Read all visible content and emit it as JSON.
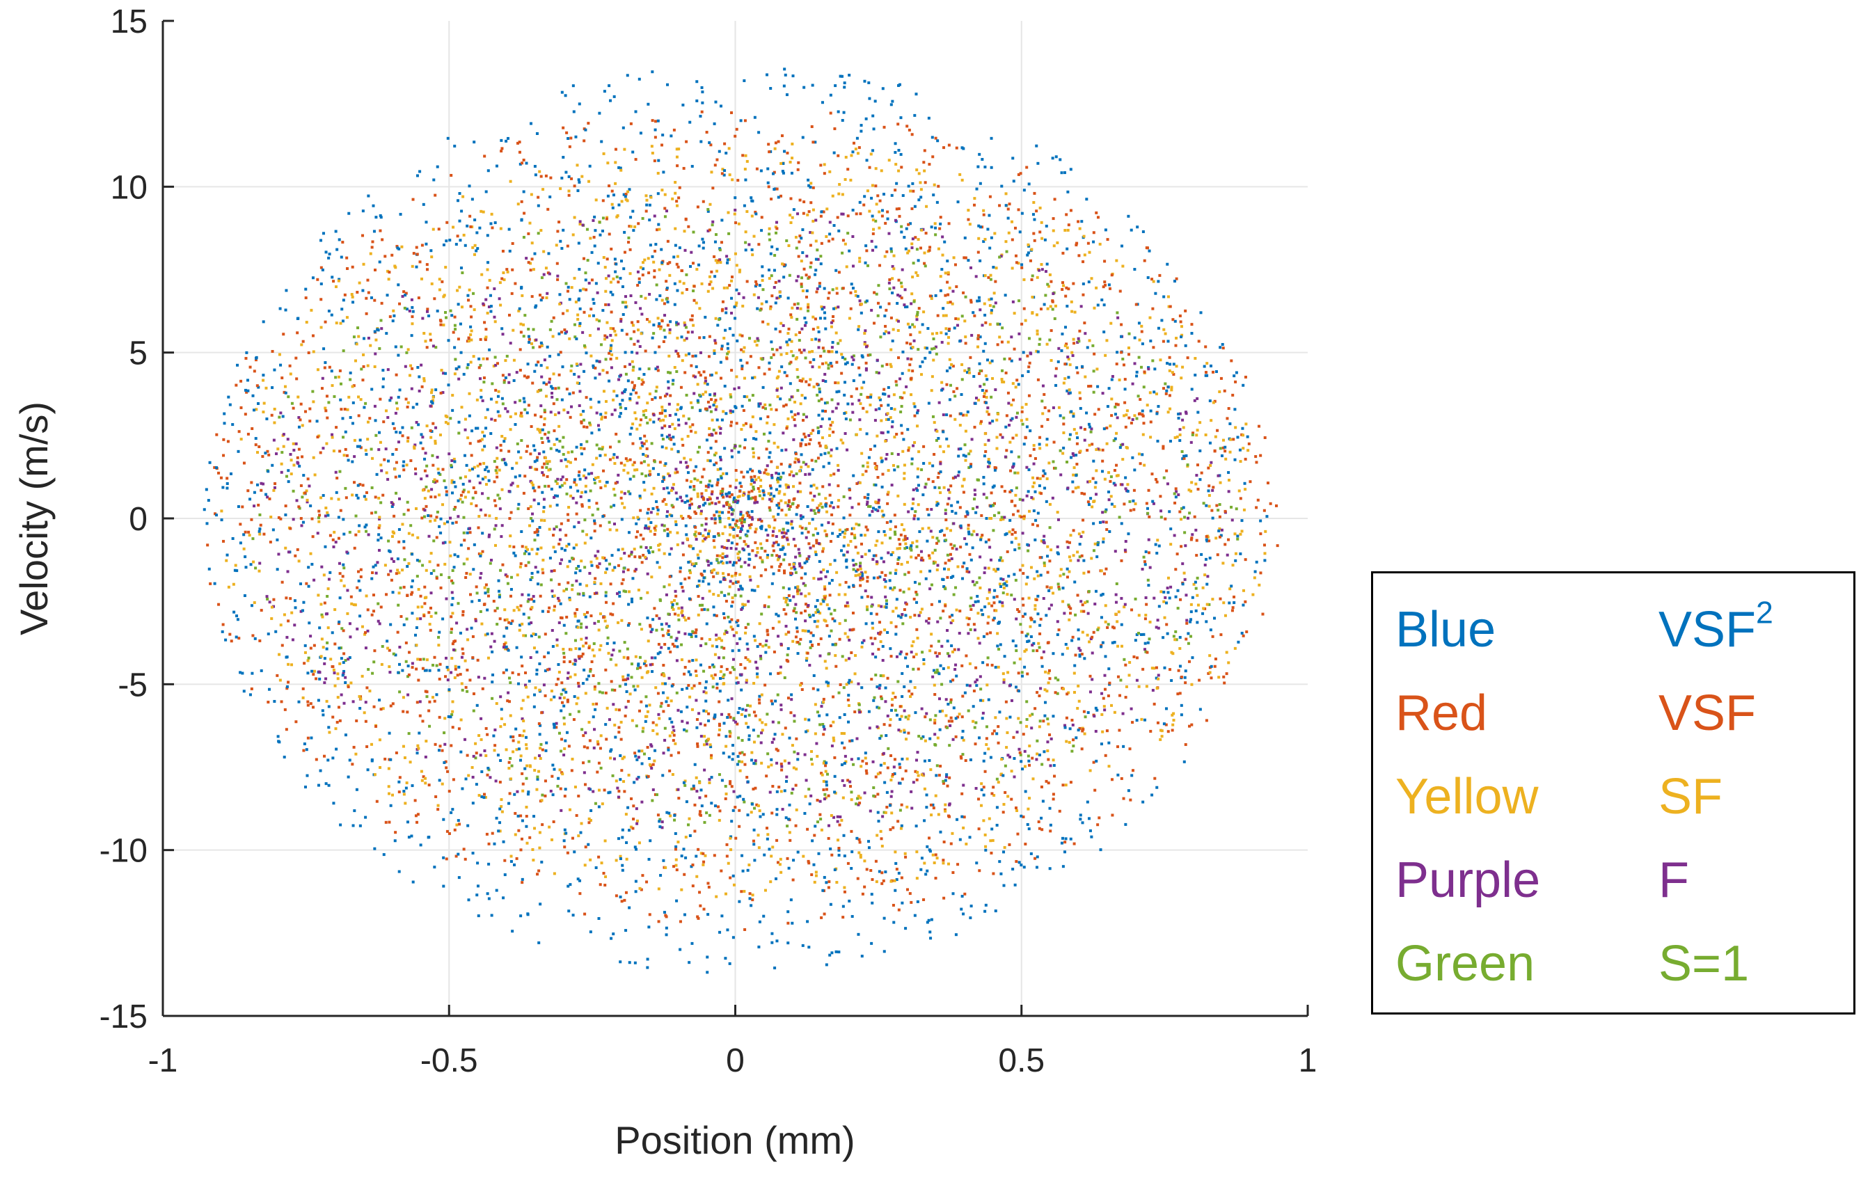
{
  "chart_data": {
    "type": "scatter",
    "xlabel": "Position (mm)",
    "ylabel": "Velocity (m/s)",
    "xlim": [
      -1,
      1
    ],
    "ylim": [
      -15,
      15
    ],
    "x_ticks": [
      "-1",
      "-0.5",
      "0",
      "0.5",
      "1"
    ],
    "y_ticks": [
      "15",
      "10",
      "5",
      "0",
      "-5",
      "-10",
      "-15"
    ],
    "x_tick_values": [
      -1,
      -0.5,
      0,
      0.5,
      1
    ],
    "y_tick_values": [
      15,
      10,
      5,
      0,
      -5,
      -10,
      -15
    ],
    "grid": true,
    "legend_position": "right",
    "series": [
      {
        "color_name": "Blue",
        "label": "VSF",
        "label_sup": "2",
        "color": "#0072BD",
        "x_range": [
          -0.93,
          0.93
        ],
        "y_range": [
          -13.8,
          13.8
        ]
      },
      {
        "color_name": "Red",
        "label": "VSF",
        "label_sup": "",
        "color": "#D95319",
        "x_range": [
          -0.93,
          0.95
        ],
        "y_range": [
          -12.5,
          12.5
        ]
      },
      {
        "color_name": "Yellow",
        "label": "SF",
        "label_sup": "",
        "color": "#EDB120",
        "x_range": [
          -0.9,
          0.93
        ],
        "y_range": [
          -11.5,
          11.5
        ]
      },
      {
        "color_name": "Purple",
        "label": "F",
        "label_sup": "",
        "color": "#7E2F8E",
        "x_range": [
          -0.85,
          0.88
        ],
        "y_range": [
          -9.5,
          9.5
        ]
      },
      {
        "color_name": "Green",
        "label": "S=1",
        "label_sup": "",
        "color": "#77AC30",
        "x_range": [
          -0.85,
          0.88
        ],
        "y_range": [
          -9.5,
          9.5
        ]
      }
    ]
  }
}
